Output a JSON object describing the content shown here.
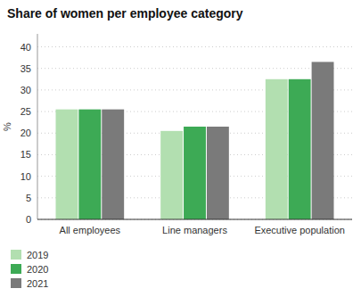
{
  "chart_data": {
    "type": "bar",
    "title": "Share of women per employee category",
    "ylabel": "%",
    "categories": [
      "All employees",
      "Line managers",
      "Executive population"
    ],
    "series": [
      {
        "name": "2019",
        "color": "#b2dfb0",
        "values": [
          25.5,
          20.5,
          32.5
        ]
      },
      {
        "name": "2020",
        "color": "#3daa55",
        "values": [
          25.5,
          21.5,
          32.5
        ]
      },
      {
        "name": "2021",
        "color": "#7a7a7a",
        "values": [
          25.5,
          21.5,
          36.5
        ]
      }
    ],
    "ylim": [
      0,
      43
    ],
    "yticks": [
      0,
      5,
      10,
      15,
      20,
      25,
      30,
      35,
      40
    ],
    "grid": true,
    "legend": "bottom left"
  }
}
